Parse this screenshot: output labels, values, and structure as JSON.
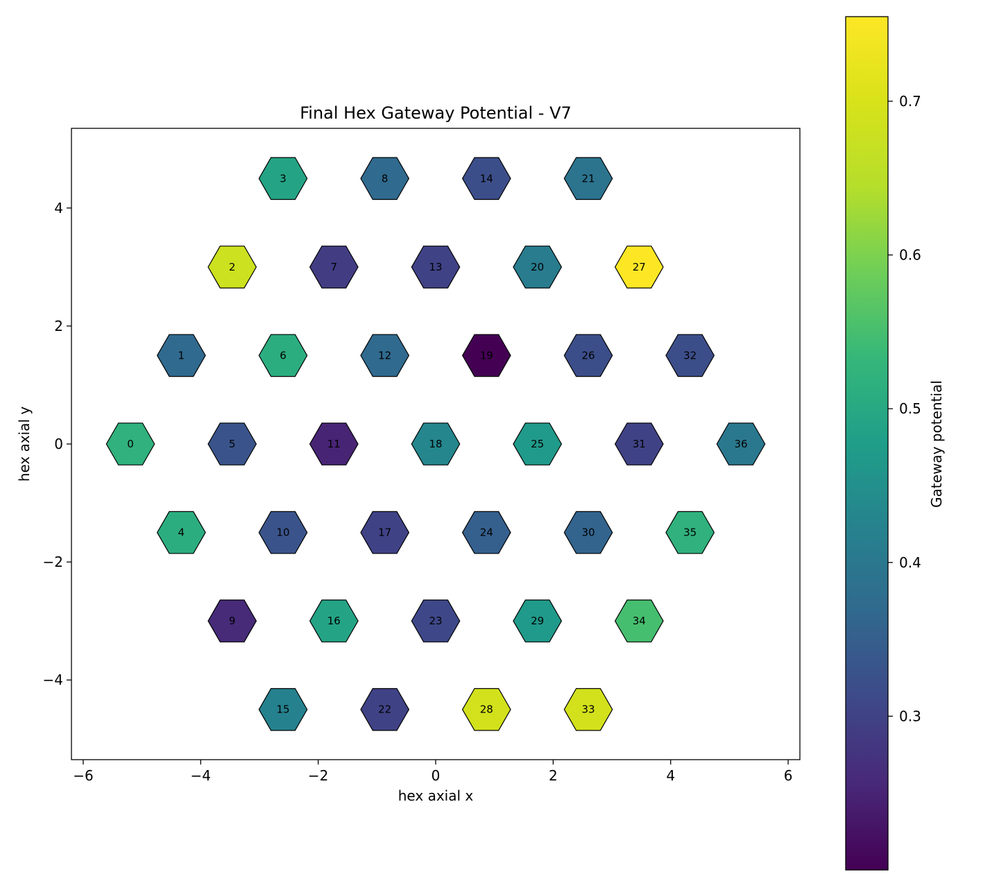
{
  "chart_data": {
    "type": "heatmap",
    "title": "Final Hex Gateway Potential - V7",
    "xlabel": "hex axial x",
    "ylabel": "hex axial y",
    "xlim": [
      -6.2,
      6.2
    ],
    "ylim": [
      -5.35,
      5.35
    ],
    "xticks": [
      -6,
      -4,
      -2,
      0,
      2,
      4,
      6
    ],
    "yticks": [
      -4,
      -2,
      0,
      2,
      4
    ],
    "xtick_labels": [
      "−6",
      "−4",
      "−2",
      "0",
      "2",
      "4",
      "6"
    ],
    "ytick_labels": [
      "−4",
      "−2",
      "0",
      "2",
      "4"
    ],
    "colormap": "viridis",
    "colorbar": {
      "label": "Gateway potential",
      "min": 0.2,
      "max": 0.755,
      "ticks": [
        0.3,
        0.4,
        0.5,
        0.6,
        0.7
      ],
      "tick_labels": [
        "0.3",
        "0.4",
        "0.5",
        "0.6",
        "0.7"
      ]
    },
    "cells": [
      {
        "id": "0",
        "x": -5.196,
        "y": 0.0,
        "value": 0.52
      },
      {
        "id": "1",
        "x": -4.33,
        "y": 1.5,
        "value": 0.37
      },
      {
        "id": "2",
        "x": -3.464,
        "y": 3.0,
        "value": 0.68
      },
      {
        "id": "3",
        "x": -2.598,
        "y": 4.5,
        "value": 0.49
      },
      {
        "id": "4",
        "x": -4.33,
        "y": -1.5,
        "value": 0.51
      },
      {
        "id": "5",
        "x": -3.464,
        "y": 0.0,
        "value": 0.33
      },
      {
        "id": "6",
        "x": -2.598,
        "y": 1.5,
        "value": 0.51
      },
      {
        "id": "7",
        "x": -1.732,
        "y": 3.0,
        "value": 0.29
      },
      {
        "id": "8",
        "x": -0.866,
        "y": 4.5,
        "value": 0.37
      },
      {
        "id": "9",
        "x": -3.464,
        "y": -3.0,
        "value": 0.26
      },
      {
        "id": "10",
        "x": -2.598,
        "y": -1.5,
        "value": 0.33
      },
      {
        "id": "11",
        "x": -1.732,
        "y": 0.0,
        "value": 0.25
      },
      {
        "id": "12",
        "x": -0.866,
        "y": 1.5,
        "value": 0.37
      },
      {
        "id": "13",
        "x": 0.0,
        "y": 3.0,
        "value": 0.3
      },
      {
        "id": "14",
        "x": 0.866,
        "y": 4.5,
        "value": 0.32
      },
      {
        "id": "15",
        "x": -2.598,
        "y": -4.5,
        "value": 0.42
      },
      {
        "id": "16",
        "x": -1.732,
        "y": -3.0,
        "value": 0.49
      },
      {
        "id": "17",
        "x": -0.866,
        "y": -1.5,
        "value": 0.3
      },
      {
        "id": "18",
        "x": 0.0,
        "y": 0.0,
        "value": 0.43
      },
      {
        "id": "19",
        "x": 0.866,
        "y": 1.5,
        "value": 0.2
      },
      {
        "id": "20",
        "x": 1.732,
        "y": 3.0,
        "value": 0.41
      },
      {
        "id": "21",
        "x": 2.598,
        "y": 4.5,
        "value": 0.39
      },
      {
        "id": "22",
        "x": -0.866,
        "y": -4.5,
        "value": 0.3
      },
      {
        "id": "23",
        "x": 0.0,
        "y": -3.0,
        "value": 0.31
      },
      {
        "id": "24",
        "x": 0.866,
        "y": -1.5,
        "value": 0.35
      },
      {
        "id": "25",
        "x": 1.732,
        "y": 0.0,
        "value": 0.47
      },
      {
        "id": "26",
        "x": 2.598,
        "y": 1.5,
        "value": 0.32
      },
      {
        "id": "27",
        "x": 3.464,
        "y": 3.0,
        "value": 0.755
      },
      {
        "id": "28",
        "x": 0.866,
        "y": -4.5,
        "value": 0.69
      },
      {
        "id": "29",
        "x": 1.732,
        "y": -3.0,
        "value": 0.47
      },
      {
        "id": "30",
        "x": 2.598,
        "y": -1.5,
        "value": 0.36
      },
      {
        "id": "31",
        "x": 3.464,
        "y": 0.0,
        "value": 0.3
      },
      {
        "id": "32",
        "x": 4.33,
        "y": 1.5,
        "value": 0.32
      },
      {
        "id": "33",
        "x": 2.598,
        "y": -4.5,
        "value": 0.69
      },
      {
        "id": "34",
        "x": 3.464,
        "y": -3.0,
        "value": 0.55
      },
      {
        "id": "35",
        "x": 4.33,
        "y": -1.5,
        "value": 0.52
      },
      {
        "id": "36",
        "x": 5.196,
        "y": 0.0,
        "value": 0.4
      }
    ]
  }
}
